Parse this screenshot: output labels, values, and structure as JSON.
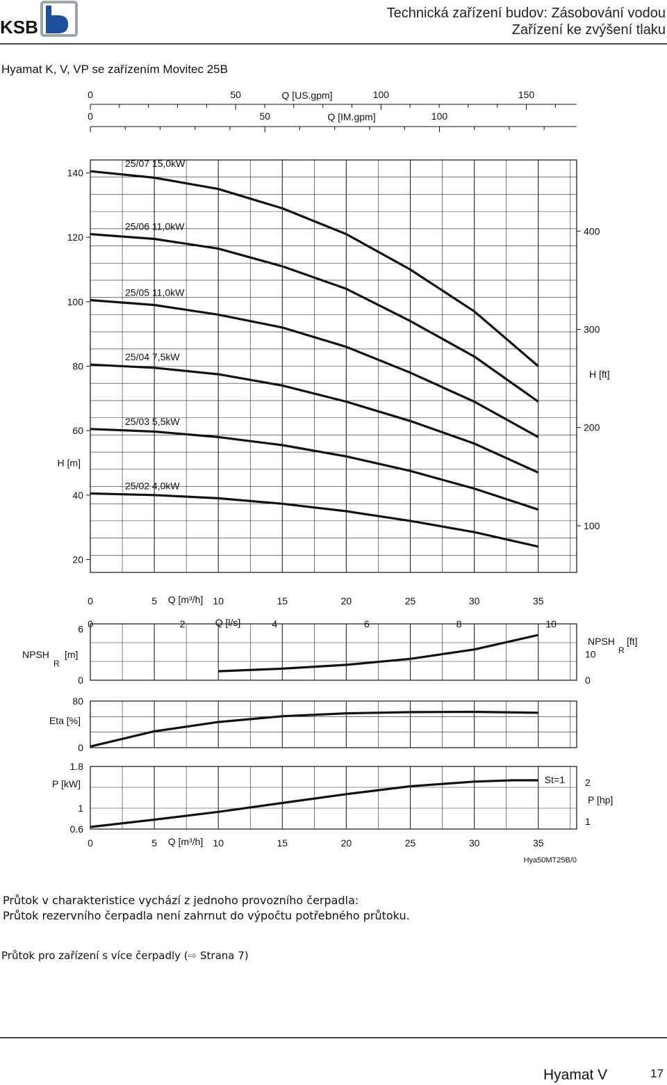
{
  "header": {
    "logo_text": "KSB",
    "title": "Technická zařízení budov: Zásobování vodou",
    "subtitle": "Zařízení ke zvýšení tlaku"
  },
  "section_title": "Hyamat K, V, VP se zařízením Movitec 25B",
  "notes": {
    "line1": "Průtok v charakteristice vychází z jednoho provozního čerpadla:",
    "line2": "Průtok rezervního čerpadla není zahrnut do výpočtu potřebného průtoku.",
    "line3_prefix": "Průtok pro zařízení s více čerpadly (",
    "line3_icon": "arrow-right-icon",
    "line3_suffix": "Strana 7)"
  },
  "footer": {
    "product": "Hyamat V",
    "page": "17"
  },
  "chart_data": {
    "type": "line",
    "figure_id": "Hya50MT25B/0",
    "top_axes": {
      "us_gpm": {
        "label": "Q [US.gpm]",
        "ticks": [
          "0",
          "50",
          "100",
          "150"
        ]
      },
      "im_gpm": {
        "label": "Q [IM.gpm]",
        "ticks": [
          "0",
          "50",
          "100"
        ]
      }
    },
    "q_axis": {
      "label": "Q [m³/h]",
      "ticks": [
        "0",
        "5",
        "10",
        "15",
        "20",
        "25",
        "30",
        "35"
      ],
      "range": [
        0,
        38
      ]
    },
    "ls_axis": {
      "label": "Q [l/s]",
      "ticks": [
        "0",
        "2",
        "4",
        "6",
        "8",
        "10"
      ]
    },
    "head": {
      "ylabel": "H [m]",
      "yticks": [
        "20",
        "40",
        "60",
        "80",
        "100",
        "120",
        "140"
      ],
      "ylim": [
        16,
        144
      ],
      "ylabel_right": "H [ft]",
      "yticks_right": [
        "100",
        "200",
        "300",
        "400"
      ],
      "series": [
        {
          "name": "25/07 15,0kW",
          "x": [
            0,
            5,
            10,
            15,
            20,
            25,
            30,
            35
          ],
          "y": [
            140.5,
            138.5,
            135,
            129,
            121,
            110,
            97,
            80
          ]
        },
        {
          "name": "25/06 11,0kW",
          "x": [
            0,
            5,
            10,
            15,
            20,
            25,
            30,
            35
          ],
          "y": [
            121,
            119.5,
            116.5,
            111,
            104,
            94,
            83,
            69
          ]
        },
        {
          "name": "25/05 11,0kW",
          "x": [
            0,
            5,
            10,
            15,
            20,
            25,
            30,
            35
          ],
          "y": [
            100.5,
            99,
            96,
            92,
            86,
            78,
            69,
            58
          ]
        },
        {
          "name": "25/04 7,5kW",
          "x": [
            0,
            5,
            10,
            15,
            20,
            25,
            30,
            35
          ],
          "y": [
            80.5,
            79.5,
            77.5,
            74,
            69,
            63,
            56,
            47
          ]
        },
        {
          "name": "25/03 5,5kW",
          "x": [
            0,
            5,
            10,
            15,
            20,
            25,
            30,
            35
          ],
          "y": [
            60.5,
            59.7,
            58,
            55.5,
            52,
            47.5,
            42,
            35.5
          ]
        },
        {
          "name": "25/02 4,0kW",
          "x": [
            0,
            5,
            10,
            15,
            20,
            25,
            30,
            35
          ],
          "y": [
            40.5,
            40,
            39,
            37.3,
            35,
            32,
            28.5,
            24
          ]
        }
      ]
    },
    "npsh": {
      "ylabel": "NPSH",
      "ylabel_sub": "R",
      "ylabel_unit": "[m]",
      "yticks": [
        "0",
        "6"
      ],
      "ylim": [
        0,
        6.6
      ],
      "ylabel_right": "NPSH",
      "ylabel_right_sub": "R",
      "ylabel_right_unit": "[ft]",
      "yticks_right": [
        "0",
        "10"
      ],
      "x": [
        10,
        15,
        20,
        25,
        30,
        35
      ],
      "y": [
        1.05,
        1.35,
        1.8,
        2.5,
        3.6,
        5.3
      ]
    },
    "efficiency": {
      "ylabel": "Eta [%]",
      "yticks": [
        "0",
        "80"
      ],
      "ylim": [
        0,
        80
      ],
      "x": [
        0,
        5,
        10,
        15,
        20,
        25,
        30,
        35
      ],
      "y": [
        2,
        28,
        44,
        54,
        59,
        61,
        61.5,
        60
      ]
    },
    "power": {
      "ylabel": "P [kW]",
      "yticks": [
        "0.6",
        "1",
        "1.8"
      ],
      "ylim": [
        0.6,
        1.8
      ],
      "ylabel_right": "P [hp]",
      "yticks_right": [
        "1",
        "2"
      ],
      "annotation": "St=1",
      "x": [
        0,
        5,
        10,
        15,
        20,
        25,
        30,
        33,
        35
      ],
      "y": [
        0.64,
        0.78,
        0.93,
        1.1,
        1.27,
        1.42,
        1.51,
        1.535,
        1.535
      ]
    }
  }
}
